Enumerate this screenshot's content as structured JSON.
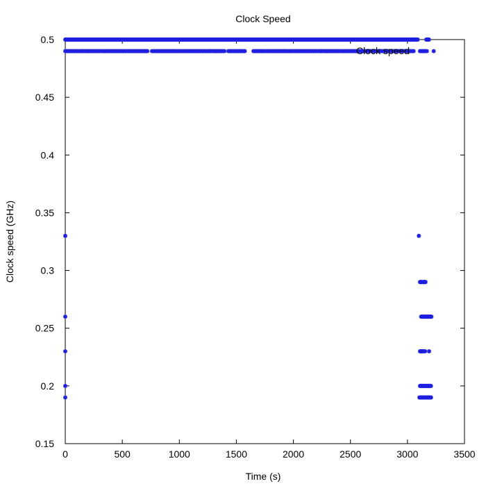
{
  "chart_data": {
    "type": "scatter",
    "title": "Clock Speed",
    "xlabel": "Time (s)",
    "ylabel": "Clock speed (GHz)",
    "xlim": [
      0,
      3500
    ],
    "ylim": [
      0.15,
      0.5
    ],
    "x_ticks": [
      0,
      500,
      1000,
      1500,
      2000,
      2500,
      3000,
      3500
    ],
    "y_ticks": [
      0.15,
      0.2,
      0.25,
      0.3,
      0.35,
      0.4,
      0.45,
      0.5
    ],
    "x_tick_labels": [
      "0",
      "500",
      "1000",
      "1500",
      "2000",
      "2500",
      "3000",
      "3500"
    ],
    "y_tick_labels": [
      "0.15",
      "0.2",
      "0.25",
      "0.3",
      "0.35",
      "0.4",
      "0.45",
      "0.5"
    ],
    "grid": false,
    "legend_position": "top-right",
    "point_color": "#1f1fe0",
    "series": [
      {
        "name": "Clock speed",
        "marker": "star",
        "segments": [
          {
            "y": 0.5,
            "x_start": 0,
            "x_end": 3090,
            "step": 6
          },
          {
            "y": 0.5,
            "x_start": 3165,
            "x_end": 3190,
            "step": 6
          },
          {
            "y": 0.49,
            "x_start": 0,
            "x_end": 720,
            "step": 12
          },
          {
            "y": 0.49,
            "x_start": 760,
            "x_end": 1400,
            "step": 12
          },
          {
            "y": 0.49,
            "x_start": 1430,
            "x_end": 1580,
            "step": 12
          },
          {
            "y": 0.49,
            "x_start": 1650,
            "x_end": 3060,
            "step": 12
          },
          {
            "y": 0.49,
            "x_start": 3110,
            "x_end": 3180,
            "step": 12
          },
          {
            "y": 0.29,
            "x_start": 3110,
            "x_end": 3130,
            "step": 6
          },
          {
            "y": 0.29,
            "x_start": 3140,
            "x_end": 3160,
            "step": 6
          },
          {
            "y": 0.26,
            "x_start": 3120,
            "x_end": 3210,
            "step": 6
          },
          {
            "y": 0.23,
            "x_start": 3110,
            "x_end": 3140,
            "step": 6
          },
          {
            "y": 0.2,
            "x_start": 3110,
            "x_end": 3210,
            "step": 6
          },
          {
            "y": 0.19,
            "x_start": 3105,
            "x_end": 3210,
            "step": 6
          }
        ],
        "points": [
          [
            3230,
            0.49
          ],
          [
            3100,
            0.33
          ],
          [
            3155,
            0.23
          ],
          [
            3190,
            0.23
          ],
          [
            3165,
            0.19
          ],
          [
            0,
            0.33
          ],
          [
            0,
            0.26
          ],
          [
            0,
            0.23
          ],
          [
            0,
            0.2
          ],
          [
            0,
            0.19
          ]
        ]
      }
    ]
  }
}
